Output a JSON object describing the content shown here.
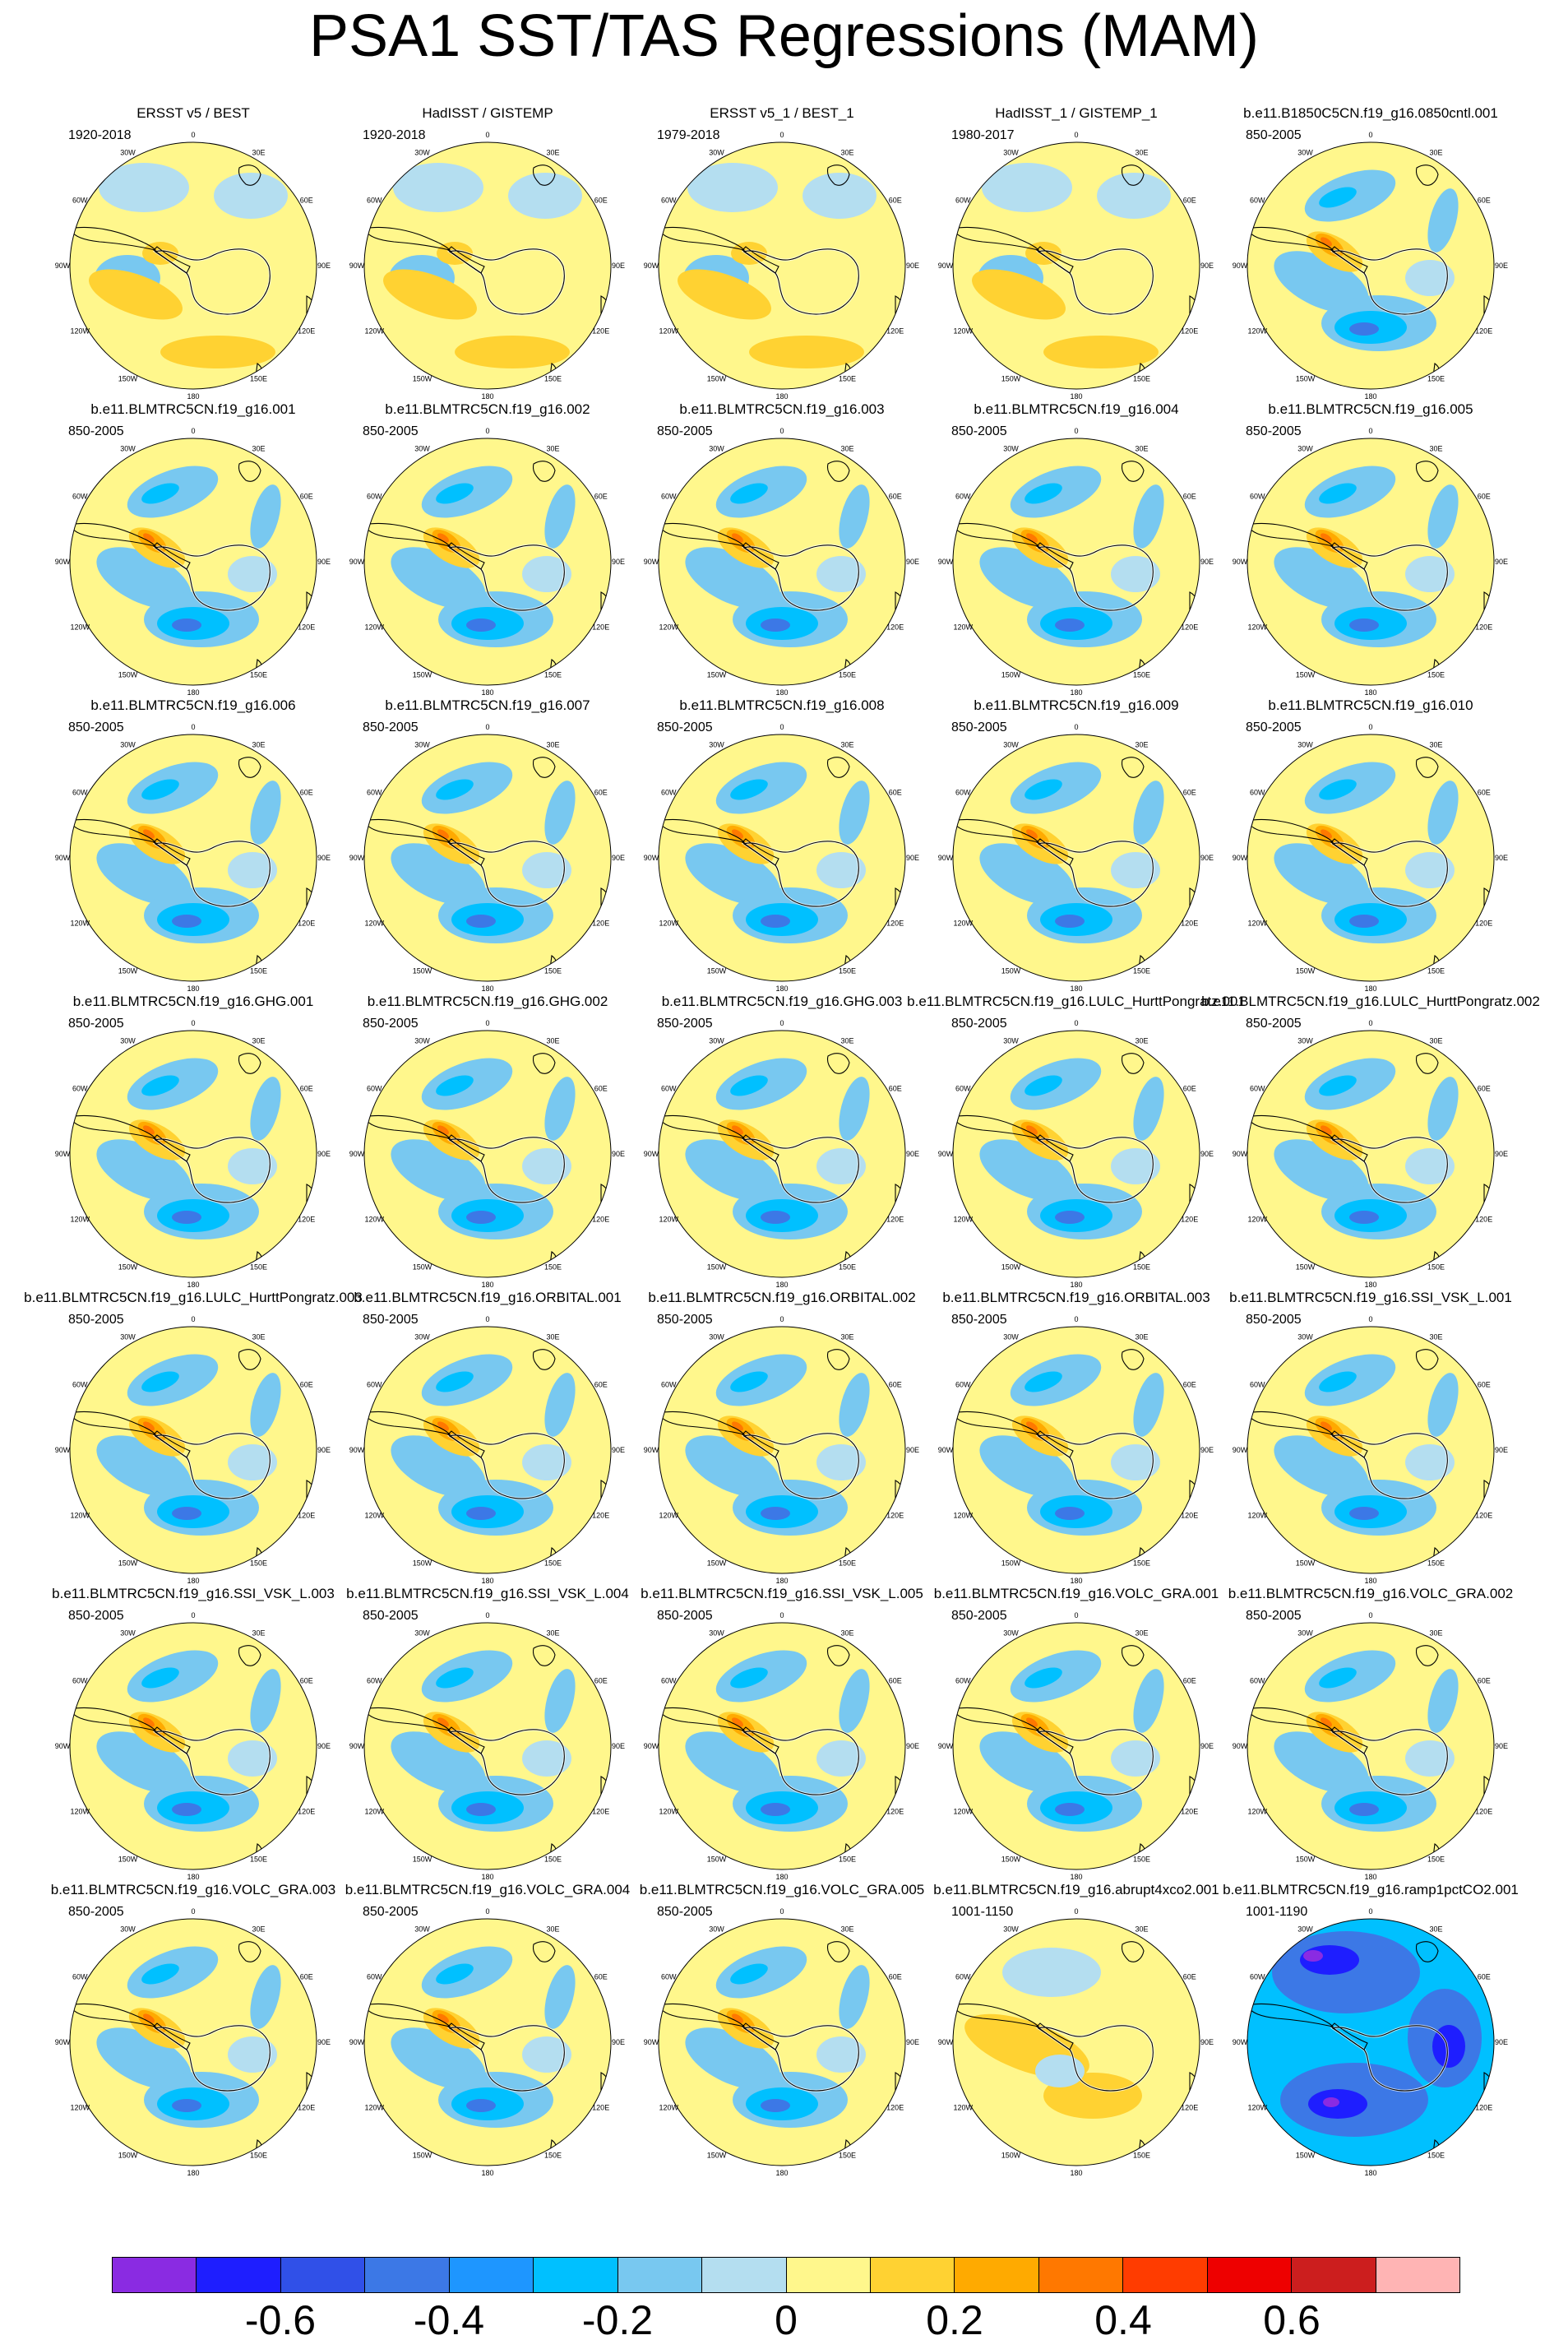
{
  "title": "PSA1 SST/TAS Regressions (MAM)",
  "lon_labels": [
    "0",
    "30E",
    "60E",
    "90E",
    "120E",
    "150E",
    "180",
    "150W",
    "120W",
    "90W",
    "60W",
    "30W"
  ],
  "colors": {
    "background": "#ffffff",
    "coast": "#000000",
    "scale": [
      "#8a2be2",
      "#1e1eff",
      "#3050e8",
      "#3c78e6",
      "#1e96ff",
      "#00c0ff",
      "#78c8f0",
      "#b4def0",
      "#fff78c",
      "#ffd232",
      "#ffaa00",
      "#ff7800",
      "#ff3c00",
      "#ee0000",
      "#cc1e1e",
      "#ffb4b4"
    ]
  },
  "colorbar": {
    "labels": [
      {
        "text": "-0.6",
        "boundary": 2
      },
      {
        "text": "-0.4",
        "boundary": 4
      },
      {
        "text": "-0.2",
        "boundary": 6
      },
      {
        "text": "0",
        "boundary": 8
      },
      {
        "text": "0.2",
        "boundary": 10
      },
      {
        "text": "0.4",
        "boundary": 12
      },
      {
        "text": "0.6",
        "boundary": 14
      }
    ]
  },
  "panels": [
    {
      "title": "ERSST v5 / BEST",
      "period": "1920-2018",
      "style": "obs"
    },
    {
      "title": "HadISST / GISTEMP",
      "period": "1920-2018",
      "style": "obs"
    },
    {
      "title": "ERSST v5_1 / BEST_1",
      "period": "1979-2018",
      "style": "obs"
    },
    {
      "title": "HadISST_1 / GISTEMP_1",
      "period": "1980-2017",
      "style": "obs"
    },
    {
      "title": "b.e11.B1850C5CN.f19_g16.0850cntl.001",
      "period": "850-2005",
      "style": "model"
    },
    {
      "title": "b.e11.BLMTRC5CN.f19_g16.001",
      "period": "850-2005",
      "style": "model"
    },
    {
      "title": "b.e11.BLMTRC5CN.f19_g16.002",
      "period": "850-2005",
      "style": "model"
    },
    {
      "title": "b.e11.BLMTRC5CN.f19_g16.003",
      "period": "850-2005",
      "style": "model"
    },
    {
      "title": "b.e11.BLMTRC5CN.f19_g16.004",
      "period": "850-2005",
      "style": "model"
    },
    {
      "title": "b.e11.BLMTRC5CN.f19_g16.005",
      "period": "850-2005",
      "style": "model"
    },
    {
      "title": "b.e11.BLMTRC5CN.f19_g16.006",
      "period": "850-2005",
      "style": "model"
    },
    {
      "title": "b.e11.BLMTRC5CN.f19_g16.007",
      "period": "850-2005",
      "style": "model"
    },
    {
      "title": "b.e11.BLMTRC5CN.f19_g16.008",
      "period": "850-2005",
      "style": "model"
    },
    {
      "title": "b.e11.BLMTRC5CN.f19_g16.009",
      "period": "850-2005",
      "style": "model"
    },
    {
      "title": "b.e11.BLMTRC5CN.f19_g16.010",
      "period": "850-2005",
      "style": "model"
    },
    {
      "title": "b.e11.BLMTRC5CN.f19_g16.GHG.001",
      "period": "850-2005",
      "style": "model"
    },
    {
      "title": "b.e11.BLMTRC5CN.f19_g16.GHG.002",
      "period": "850-2005",
      "style": "model"
    },
    {
      "title": "b.e11.BLMTRC5CN.f19_g16.GHG.003",
      "period": "850-2005",
      "style": "model"
    },
    {
      "title": "b.e11.BLMTRC5CN.f19_g16.LULC_HurttPongratz.001",
      "period": "850-2005",
      "style": "model"
    },
    {
      "title": "b.e11.BLMTRC5CN.f19_g16.LULC_HurttPongratz.002",
      "period": "850-2005",
      "style": "model"
    },
    {
      "title": "b.e11.BLMTRC5CN.f19_g16.LULC_HurttPongratz.003",
      "period": "850-2005",
      "style": "model"
    },
    {
      "title": "b.e11.BLMTRC5CN.f19_g16.ORBITAL.001",
      "period": "850-2005",
      "style": "model"
    },
    {
      "title": "b.e11.BLMTRC5CN.f19_g16.ORBITAL.002",
      "period": "850-2005",
      "style": "model"
    },
    {
      "title": "b.e11.BLMTRC5CN.f19_g16.ORBITAL.003",
      "period": "850-2005",
      "style": "model"
    },
    {
      "title": "b.e11.BLMTRC5CN.f19_g16.SSI_VSK_L.001",
      "period": "850-2005",
      "style": "model"
    },
    {
      "title": "b.e11.BLMTRC5CN.f19_g16.SSI_VSK_L.003",
      "period": "850-2005",
      "style": "model"
    },
    {
      "title": "b.e11.BLMTRC5CN.f19_g16.SSI_VSK_L.004",
      "period": "850-2005",
      "style": "model"
    },
    {
      "title": "b.e11.BLMTRC5CN.f19_g16.SSI_VSK_L.005",
      "period": "850-2005",
      "style": "model"
    },
    {
      "title": "b.e11.BLMTRC5CN.f19_g16.VOLC_GRA.001",
      "period": "850-2005",
      "style": "model"
    },
    {
      "title": "b.e11.BLMTRC5CN.f19_g16.VOLC_GRA.002",
      "period": "850-2005",
      "style": "model"
    },
    {
      "title": "b.e11.BLMTRC5CN.f19_g16.VOLC_GRA.003",
      "period": "850-2005",
      "style": "model"
    },
    {
      "title": "b.e11.BLMTRC5CN.f19_g16.VOLC_GRA.004",
      "period": "850-2005",
      "style": "model"
    },
    {
      "title": "b.e11.BLMTRC5CN.f19_g16.VOLC_GRA.005",
      "period": "850-2005",
      "style": "model"
    },
    {
      "title": "b.e11.BLMTRC5CN.f19_g16.abrupt4xco2.001",
      "period": "1001-1150",
      "style": "abrupt"
    },
    {
      "title": "b.e11.BLMTRC5CN.f19_g16.ramp1pctCO2.001",
      "period": "1001-1190",
      "style": "ramp"
    }
  ]
}
